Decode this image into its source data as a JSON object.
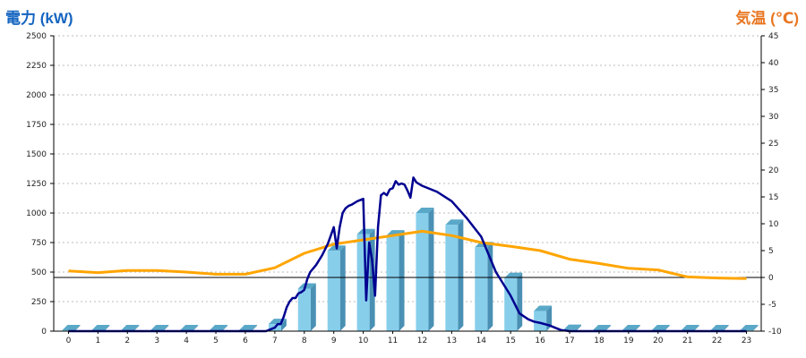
{
  "chart_data": {
    "type": "bar",
    "title_left": "電力 (kW)",
    "title_right": "気温 (℃)",
    "colors": {
      "title_left": "#1565c0",
      "title_right": "#e87722",
      "bar_front": "#87ceeb",
      "bar_top": "#5aa8c8",
      "bar_side": "#4a90b4",
      "power_line": "#000090",
      "temp_line": "#ffa500",
      "grid": "#bbbbbb",
      "zero_line": "#000000"
    },
    "categories": [
      "0",
      "1",
      "2",
      "3",
      "4",
      "5",
      "6",
      "7",
      "8",
      "9",
      "10",
      "11",
      "12",
      "13",
      "14",
      "15",
      "16",
      "17",
      "18",
      "19",
      "20",
      "21",
      "22",
      "23"
    ],
    "y_left": {
      "min": 0,
      "max": 2500,
      "ticks": [
        0,
        250,
        500,
        750,
        1000,
        1250,
        1500,
        1750,
        2000,
        2250,
        2500
      ]
    },
    "y_right": {
      "min": -10,
      "max": 45,
      "ticks": [
        -10,
        -5,
        0,
        5,
        10,
        15,
        20,
        25,
        30,
        35,
        40,
        45
      ],
      "reference_line": 0
    },
    "grid": "horizontal dashed",
    "series": [
      {
        "type": "bar3d",
        "axis": "left",
        "values": [
          5,
          5,
          5,
          5,
          5,
          5,
          5,
          60,
          360,
          680,
          820,
          810,
          1000,
          900,
          710,
          450,
          170,
          10,
          5,
          5,
          5,
          5,
          5,
          5
        ]
      },
      {
        "type": "line",
        "axis": "left",
        "x": [
          0,
          1,
          2,
          3,
          4,
          5,
          6,
          6.7,
          7,
          7.1,
          7.2,
          7.3,
          7.4,
          7.5,
          7.6,
          7.7,
          7.8,
          7.9,
          8,
          8.1,
          8.2,
          8.4,
          8.6,
          8.8,
          9,
          9.1,
          9.2,
          9.3,
          9.4,
          9.5,
          9.6,
          9.8,
          10,
          10.1,
          10.2,
          10.3,
          10.4,
          10.5,
          10.6,
          10.7,
          10.8,
          10.9,
          11,
          11.1,
          11.2,
          11.3,
          11.4,
          11.5,
          11.6,
          11.7,
          11.8,
          12,
          12.5,
          13,
          13.5,
          14,
          14.5,
          15,
          15.3,
          15.6,
          15.8,
          16,
          16.3,
          16.5,
          16.7,
          17,
          18,
          19,
          20,
          21,
          22,
          23
        ],
        "values": [
          0,
          0,
          0,
          0,
          0,
          0,
          0,
          0,
          30,
          60,
          60,
          120,
          200,
          250,
          280,
          280,
          320,
          330,
          350,
          440,
          500,
          560,
          640,
          740,
          880,
          700,
          880,
          1000,
          1040,
          1060,
          1070,
          1100,
          1120,
          260,
          750,
          600,
          300,
          880,
          1150,
          1170,
          1150,
          1200,
          1210,
          1270,
          1240,
          1250,
          1240,
          1190,
          1130,
          1300,
          1260,
          1230,
          1180,
          1100,
          960,
          800,
          500,
          300,
          150,
          100,
          80,
          70,
          50,
          30,
          10,
          0,
          0,
          0,
          0,
          0,
          0,
          0
        ]
      },
      {
        "type": "line",
        "axis": "right",
        "values": [
          1.2,
          0.9,
          1.3,
          1.3,
          1.0,
          0.6,
          0.6,
          1.8,
          4.5,
          6.2,
          7.0,
          7.8,
          8.6,
          7.8,
          6.5,
          5.8,
          5.0,
          3.4,
          2.6,
          1.7,
          1.4,
          0.1,
          -0.1,
          -0.2
        ]
      }
    ]
  }
}
